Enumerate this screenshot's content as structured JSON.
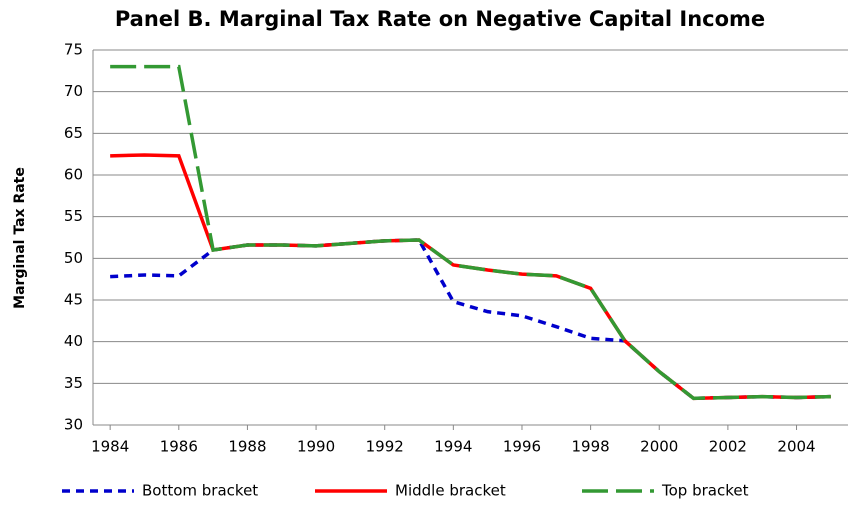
{
  "chart_data": {
    "type": "line",
    "title": "Panel B. Marginal Tax Rate on Negative Capital Income",
    "ylabel": "Marginal Tax Rate",
    "x": [
      1984,
      1985,
      1986,
      1987,
      1988,
      1989,
      1990,
      1991,
      1992,
      1993,
      1994,
      1995,
      1996,
      1997,
      1998,
      1999,
      2000,
      2001,
      2002,
      2003,
      2004,
      2005
    ],
    "xlim": [
      1983.5,
      2005.5
    ],
    "xticks": [
      1984,
      1986,
      1988,
      1990,
      1992,
      1994,
      1996,
      1998,
      2000,
      2002,
      2004
    ],
    "ylim": [
      30,
      75
    ],
    "yticks": [
      30,
      35,
      40,
      45,
      50,
      55,
      60,
      65,
      70,
      75
    ],
    "grid": true,
    "series": [
      {
        "name": "Bottom bracket",
        "color": "#0000cc",
        "dash": "8,6",
        "values": [
          47.8,
          48,
          47.9,
          51,
          51.6,
          51.6,
          51.5,
          51.8,
          52.1,
          52.2,
          44.8,
          43.6,
          43.1,
          41.8,
          40.4,
          40.1,
          36.4,
          33.2,
          33.3,
          33.4,
          33.3,
          33.4
        ]
      },
      {
        "name": "Middle bracket",
        "color": "#ff0000",
        "dash": "none",
        "values": [
          62.3,
          62.4,
          62.3,
          51,
          51.6,
          51.6,
          51.5,
          51.8,
          52.1,
          52.2,
          49.2,
          48.6,
          48.1,
          47.9,
          46.4,
          40.1,
          36.4,
          33.2,
          33.3,
          33.4,
          33.3,
          33.4
        ]
      },
      {
        "name": "Top bracket",
        "color": "#339933",
        "dash": "26,8",
        "values": [
          73,
          73,
          73,
          51,
          51.6,
          51.6,
          51.5,
          51.8,
          52.1,
          52.2,
          49.2,
          48.6,
          48.1,
          47.9,
          46.4,
          40.1,
          36.4,
          33.2,
          33.3,
          33.4,
          33.3,
          33.4
        ]
      }
    ]
  }
}
